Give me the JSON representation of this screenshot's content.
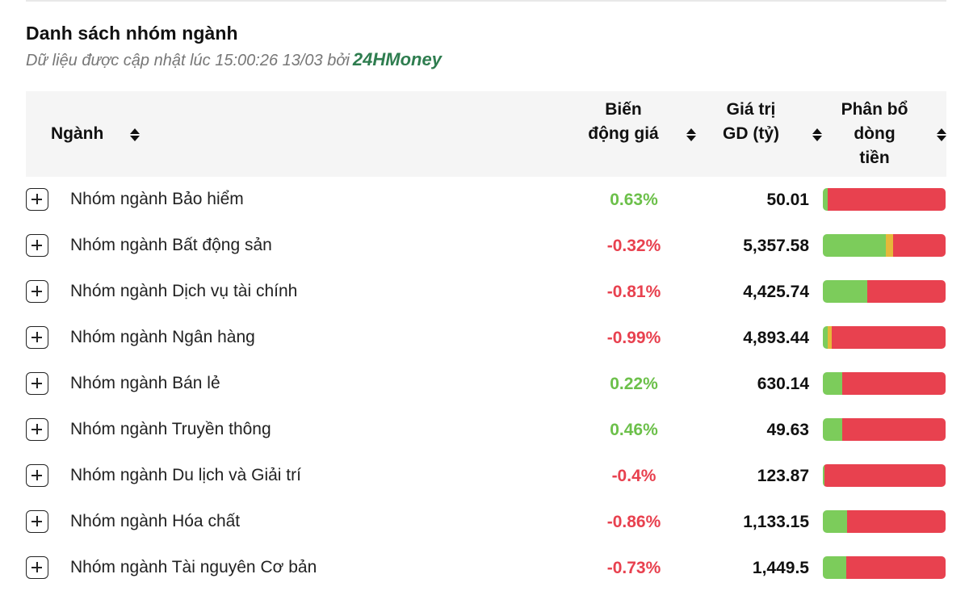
{
  "header": {
    "title": "Danh sách nhóm ngành",
    "subtitle": "Dữ liệu được cập nhật lúc 15:00:26 13/03 bởi",
    "brand": "24HMoney"
  },
  "columns": {
    "name": "Ngành",
    "change_line1": "Biến",
    "change_line2": "động giá",
    "value_line1": "Giá trị",
    "value_line2": "GD (tỷ)",
    "flow_line1": "Phân bổ",
    "flow_line2": "dòng",
    "flow_line3": "tiền"
  },
  "colors": {
    "up": "#6cc04a",
    "down": "#e8414f",
    "flow_green": "#7ccc5b",
    "flow_yellow": "#e6b83a",
    "flow_red": "#e8414f",
    "brand": "#2e7d4f"
  },
  "rows": [
    {
      "name": "Nhóm ngành Bảo hiểm",
      "change": "0.63%",
      "direction": "up",
      "value": "50.01",
      "flow": {
        "green": 4,
        "yellow": 0,
        "red": 96
      }
    },
    {
      "name": "Nhóm ngành Bất động sản",
      "change": "-0.32%",
      "direction": "down",
      "value": "5,357.58",
      "flow": {
        "green": 51,
        "yellow": 6,
        "red": 43
      }
    },
    {
      "name": "Nhóm ngành Dịch vụ tài chính",
      "change": "-0.81%",
      "direction": "down",
      "value": "4,425.74",
      "flow": {
        "green": 36,
        "yellow": 0,
        "red": 64
      }
    },
    {
      "name": "Nhóm ngành Ngân hàng",
      "change": "-0.99%",
      "direction": "down",
      "value": "4,893.44",
      "flow": {
        "green": 4,
        "yellow": 3,
        "red": 93
      }
    },
    {
      "name": "Nhóm ngành Bán lẻ",
      "change": "0.22%",
      "direction": "up",
      "value": "630.14",
      "flow": {
        "green": 16,
        "yellow": 0,
        "red": 84
      }
    },
    {
      "name": "Nhóm ngành Truyền thông",
      "change": "0.46%",
      "direction": "up",
      "value": "49.63",
      "flow": {
        "green": 16,
        "yellow": 0,
        "red": 84
      }
    },
    {
      "name": "Nhóm ngành Du lịch và Giải trí",
      "change": "-0.4%",
      "direction": "down",
      "value": "123.87",
      "flow": {
        "green": 1,
        "yellow": 0,
        "red": 99
      }
    },
    {
      "name": "Nhóm ngành Hóa chất",
      "change": "-0.86%",
      "direction": "down",
      "value": "1,133.15",
      "flow": {
        "green": 20,
        "yellow": 0,
        "red": 80
      }
    },
    {
      "name": "Nhóm ngành Tài nguyên Cơ bản",
      "change": "-0.73%",
      "direction": "down",
      "value": "1,449.5",
      "flow": {
        "green": 19,
        "yellow": 0,
        "red": 81
      }
    }
  ]
}
